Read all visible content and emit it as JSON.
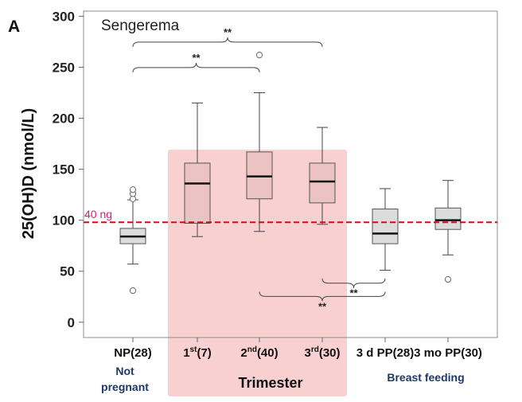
{
  "chart_data": {
    "type": "box",
    "panel_letter": "A",
    "title": "Sengerema",
    "ylabel": "25(OH)D (nmol/L)",
    "ylim": [
      -15,
      305
    ],
    "yticks": [
      0,
      50,
      100,
      150,
      200,
      250,
      300
    ],
    "categories": [
      {
        "label": "NP(28)",
        "base": "NP(28)",
        "sup": "",
        "tail": ""
      },
      {
        "label": "1st(7)",
        "base": "1",
        "sup": "st",
        "tail": "(7)"
      },
      {
        "label": "2nd(40)",
        "base": "2",
        "sup": "nd",
        "tail": "(40)"
      },
      {
        "label": "3rd(30)",
        "base": "3",
        "sup": "rd",
        "tail": "(30)"
      },
      {
        "label": "3 d PP(28)",
        "base": "3 d PP(28)",
        "sup": "",
        "tail": ""
      },
      {
        "label": "3 mo PP(30)",
        "base": "3 mo PP(30)",
        "sup": "",
        "tail": ""
      }
    ],
    "boxes": [
      {
        "whisker_low": 57,
        "q1": 77,
        "median": 84,
        "q3": 92,
        "whisker_high": 120,
        "outliers": [
          31,
          121,
          126,
          130
        ],
        "fill": "#dcdcdc"
      },
      {
        "whisker_low": 84,
        "q1": 97,
        "median": 136,
        "q3": 156,
        "whisker_high": 215,
        "outliers": [],
        "fill": "#ecc3c3"
      },
      {
        "whisker_low": 89,
        "q1": 121,
        "median": 143,
        "q3": 167,
        "whisker_high": 225,
        "outliers": [
          262
        ],
        "fill": "#ecc3c3"
      },
      {
        "whisker_low": 96,
        "q1": 117,
        "median": 138,
        "q3": 156,
        "whisker_high": 191,
        "outliers": [],
        "fill": "#ecc3c3"
      },
      {
        "whisker_low": 51,
        "q1": 77,
        "median": 87,
        "q3": 111,
        "whisker_high": 131,
        "outliers": [],
        "fill": "#dcdcdc"
      },
      {
        "whisker_low": 66,
        "q1": 91,
        "median": 100,
        "q3": 112,
        "whisker_high": 139,
        "outliers": [
          42
        ],
        "fill": "#dcdcdc"
      }
    ],
    "reference_line": {
      "value": 98,
      "label": "40 ng",
      "color": "#e8000b"
    },
    "significance": [
      {
        "from": 0,
        "to": 3,
        "y": 270,
        "label": "**",
        "side": "above"
      },
      {
        "from": 0,
        "to": 2,
        "y": 245,
        "label": "**",
        "side": "above"
      },
      {
        "from": 3,
        "to": 4,
        "y": 43,
        "label": "**",
        "side": "below"
      },
      {
        "from": 2,
        "to": 4,
        "y": 30,
        "label": "**",
        "side": "below"
      }
    ],
    "highlight_region": {
      "from_category": 1,
      "to_category": 3,
      "color": "#f9d0d0"
    },
    "group_labels": {
      "not_pregnant": [
        "Not",
        "pregnant"
      ],
      "trimester": "Trimester",
      "breast_feeding": "Breast feeding"
    },
    "grid": false
  }
}
